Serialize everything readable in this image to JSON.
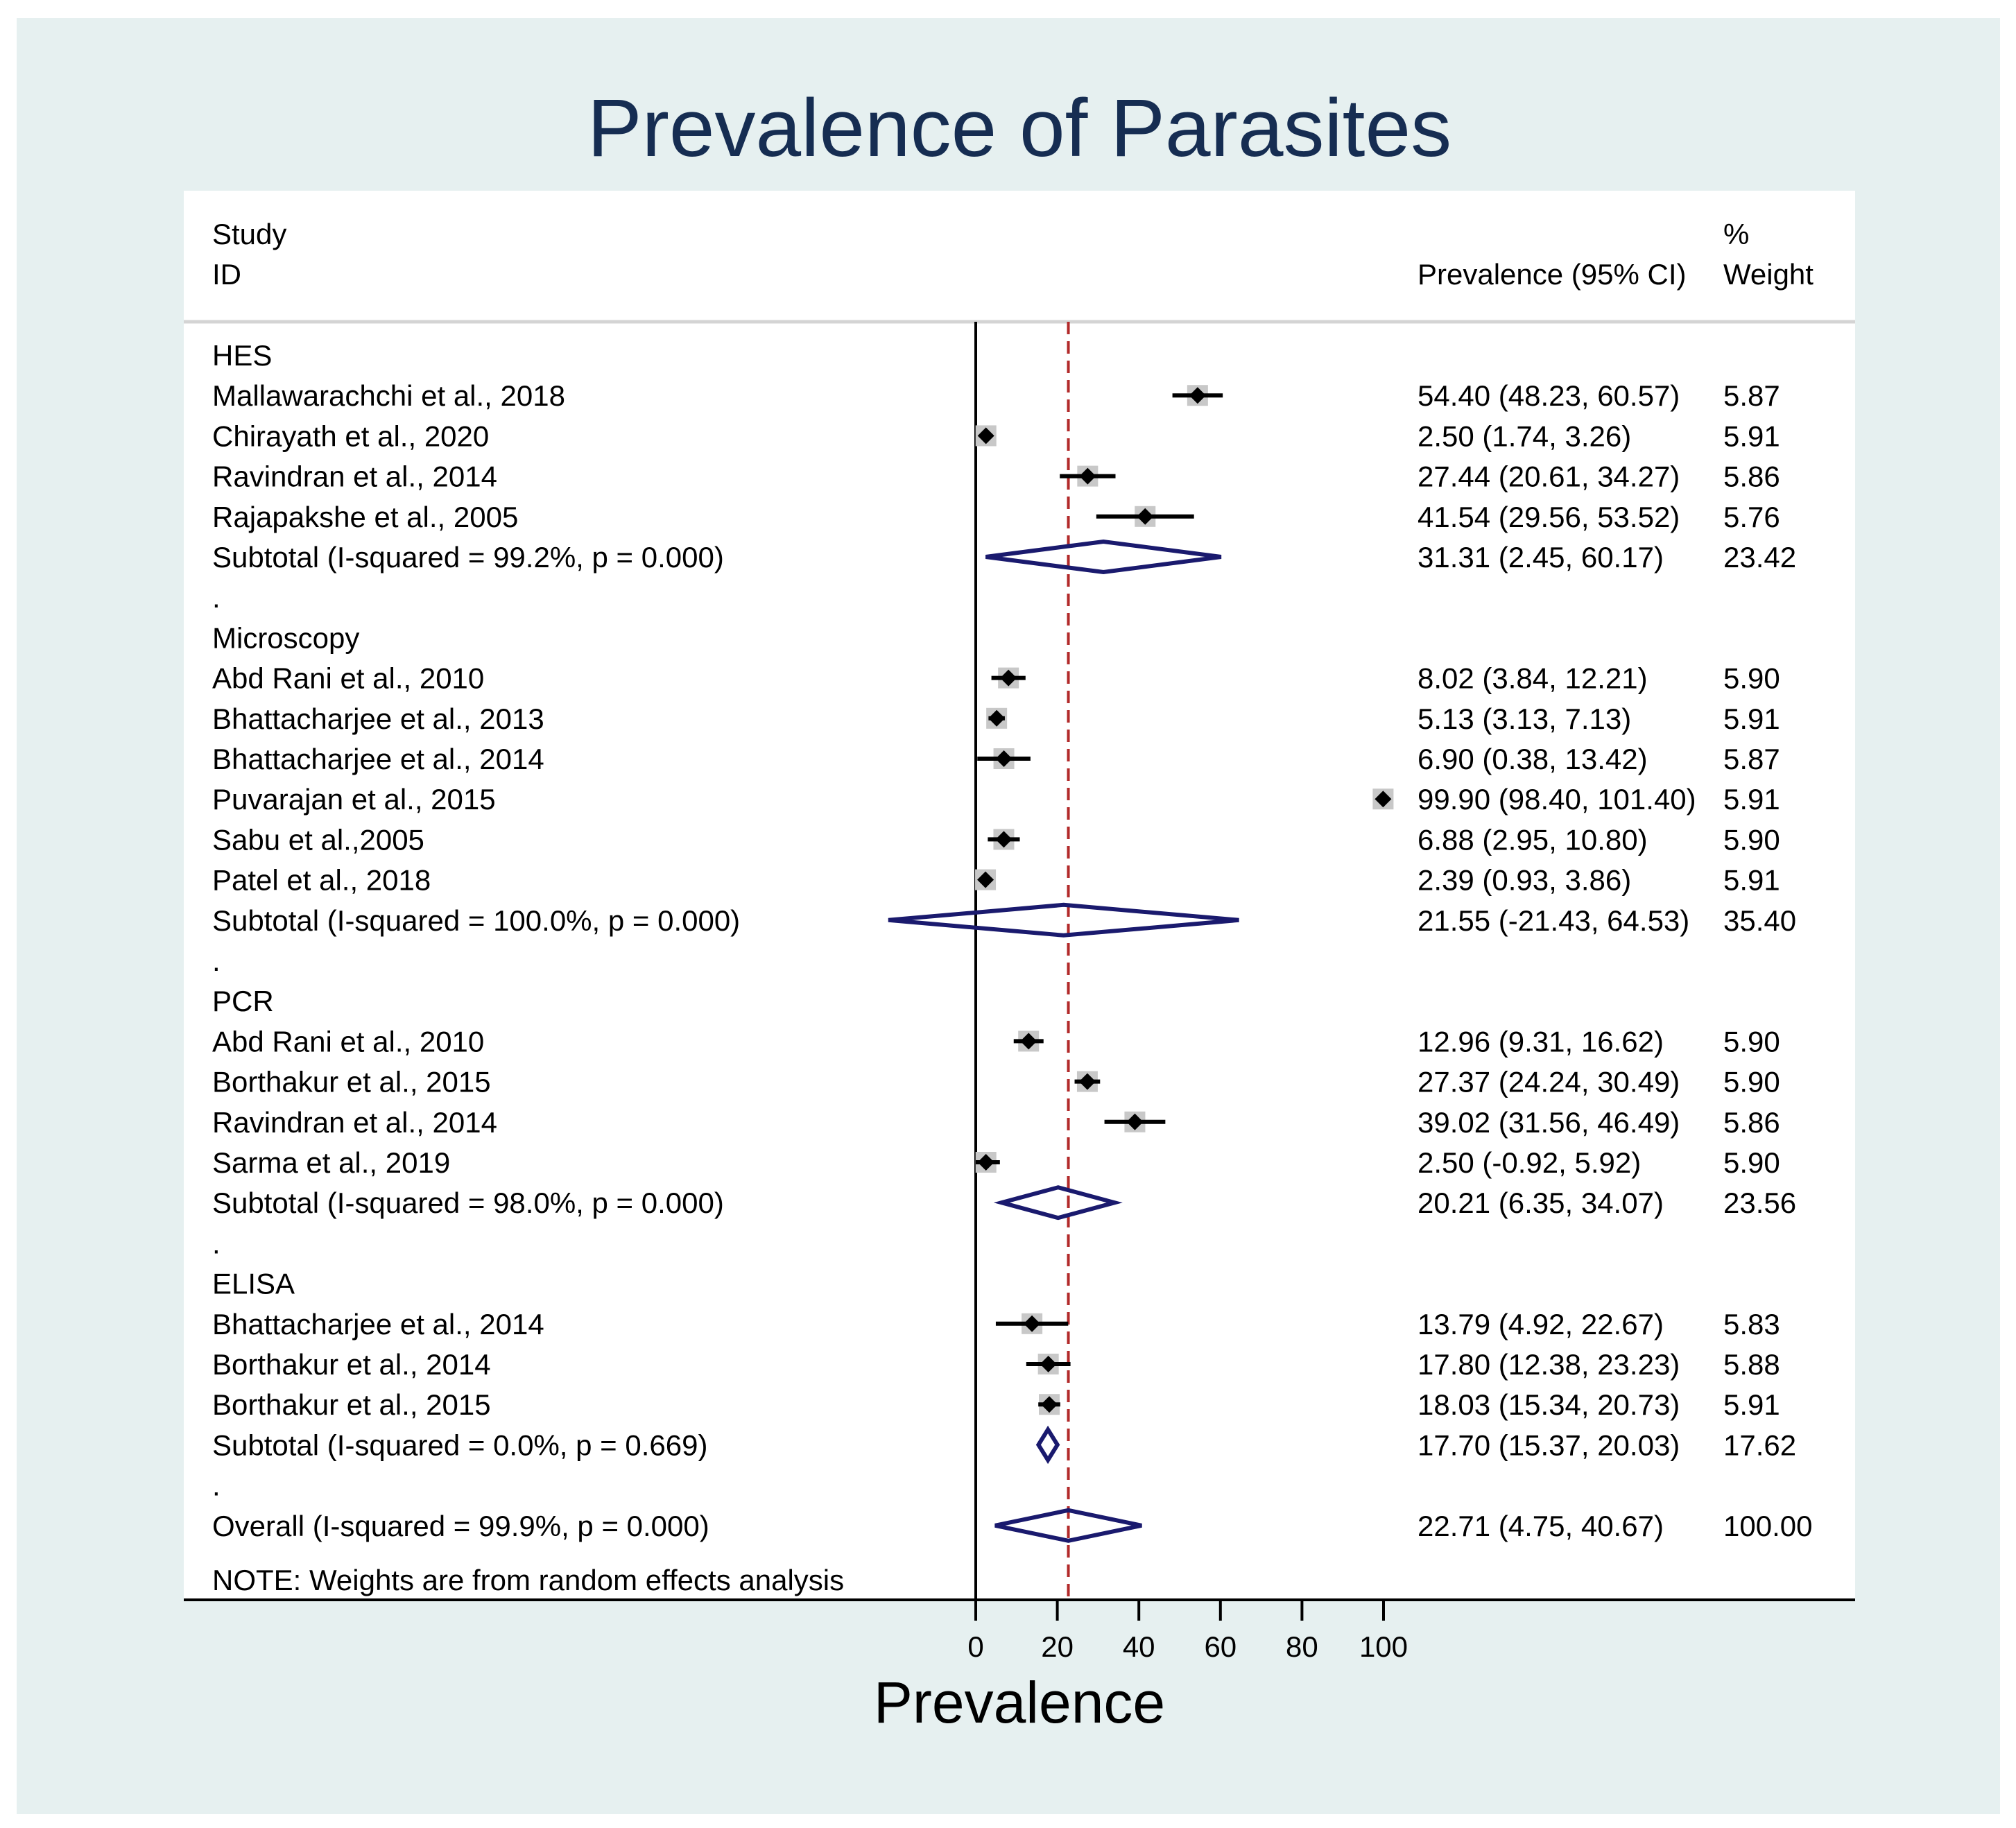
{
  "chart_data": {
    "type": "forest",
    "title": "Prevalence of Parasites",
    "xlabel": "Prevalence",
    "xlim": [
      0,
      100
    ],
    "xticks": [
      0,
      20,
      40,
      60,
      80,
      100
    ],
    "tick_labels": [
      "0",
      "20",
      "40",
      "60",
      "80",
      "100"
    ],
    "reference_line": 22.71,
    "headers": {
      "study_1": "Study",
      "study_2": "ID",
      "estimate": "Prevalence (95% CI)",
      "weight_1": "%",
      "weight_2": "Weight"
    },
    "note": "NOTE: Weights are from random effects analysis",
    "rows": [
      {
        "kind": "group",
        "label": "HES"
      },
      {
        "kind": "study",
        "label": "Mallawarachchi et al., 2018",
        "est": 54.4,
        "lo": 48.23,
        "hi": 60.57,
        "ci_text": "54.40 (48.23, 60.57)",
        "weight": "5.87"
      },
      {
        "kind": "study",
        "label": "Chirayath et al., 2020",
        "est": 2.5,
        "lo": 1.74,
        "hi": 3.26,
        "ci_text": "2.50 (1.74, 3.26)",
        "weight": "5.91"
      },
      {
        "kind": "study",
        "label": "Ravindran et al., 2014",
        "est": 27.44,
        "lo": 20.61,
        "hi": 34.27,
        "ci_text": "27.44 (20.61, 34.27)",
        "weight": "5.86"
      },
      {
        "kind": "study",
        "label": "Rajapakshe et al., 2005",
        "est": 41.54,
        "lo": 29.56,
        "hi": 53.52,
        "ci_text": "41.54 (29.56, 53.52)",
        "weight": "5.76"
      },
      {
        "kind": "subtotal",
        "label": "Subtotal  (I-squared = 99.2%, p = 0.000)",
        "est": 31.31,
        "lo": 2.45,
        "hi": 60.17,
        "ci_text": "31.31 (2.45, 60.17)",
        "weight": "23.42"
      },
      {
        "kind": "dot",
        "label": "."
      },
      {
        "kind": "group",
        "label": "Microscopy"
      },
      {
        "kind": "study",
        "label": "Abd Rani et al., 2010",
        "est": 8.02,
        "lo": 3.84,
        "hi": 12.21,
        "ci_text": "8.02 (3.84, 12.21)",
        "weight": "5.90"
      },
      {
        "kind": "study",
        "label": "Bhattacharjee et al., 2013",
        "est": 5.13,
        "lo": 3.13,
        "hi": 7.13,
        "ci_text": "5.13 (3.13, 7.13)",
        "weight": "5.91"
      },
      {
        "kind": "study",
        "label": "Bhattacharjee et al., 2014",
        "est": 6.9,
        "lo": 0.38,
        "hi": 13.42,
        "ci_text": "6.90 (0.38, 13.42)",
        "weight": "5.87"
      },
      {
        "kind": "study",
        "label": "Puvarajan et al., 2015",
        "est": 99.9,
        "lo": 98.4,
        "hi": 101.4,
        "ci_text": "99.90 (98.40, 101.40)",
        "weight": "5.91"
      },
      {
        "kind": "study",
        "label": "Sabu et al.,2005",
        "est": 6.88,
        "lo": 2.95,
        "hi": 10.8,
        "ci_text": "6.88 (2.95, 10.80)",
        "weight": "5.90"
      },
      {
        "kind": "study",
        "label": "Patel et al., 2018",
        "est": 2.39,
        "lo": 0.93,
        "hi": 3.86,
        "ci_text": "2.39 (0.93, 3.86)",
        "weight": "5.91"
      },
      {
        "kind": "subtotal",
        "label": "Subtotal  (I-squared = 100.0%, p = 0.000)",
        "est": 21.55,
        "lo": -21.43,
        "hi": 64.53,
        "ci_text": "21.55 (-21.43, 64.53)",
        "weight": "35.40"
      },
      {
        "kind": "dot",
        "label": "."
      },
      {
        "kind": "group",
        "label": "PCR"
      },
      {
        "kind": "study",
        "label": "Abd Rani et al., 2010",
        "est": 12.96,
        "lo": 9.31,
        "hi": 16.62,
        "ci_text": "12.96 (9.31, 16.62)",
        "weight": "5.90"
      },
      {
        "kind": "study",
        "label": "Borthakur et al., 2015",
        "est": 27.37,
        "lo": 24.24,
        "hi": 30.49,
        "ci_text": "27.37 (24.24, 30.49)",
        "weight": "5.90"
      },
      {
        "kind": "study",
        "label": "Ravindran et al., 2014",
        "est": 39.02,
        "lo": 31.56,
        "hi": 46.49,
        "ci_text": "39.02 (31.56, 46.49)",
        "weight": "5.86"
      },
      {
        "kind": "study",
        "label": "Sarma et al., 2019",
        "est": 2.5,
        "lo": -0.92,
        "hi": 5.92,
        "ci_text": "2.50 (-0.92, 5.92)",
        "weight": "5.90"
      },
      {
        "kind": "subtotal",
        "label": "Subtotal  (I-squared = 98.0%, p = 0.000)",
        "est": 20.21,
        "lo": 6.35,
        "hi": 34.07,
        "ci_text": "20.21 (6.35, 34.07)",
        "weight": "23.56"
      },
      {
        "kind": "dot",
        "label": "."
      },
      {
        "kind": "group",
        "label": "ELISA"
      },
      {
        "kind": "study",
        "label": "Bhattacharjee et al., 2014",
        "est": 13.79,
        "lo": 4.92,
        "hi": 22.67,
        "ci_text": "13.79 (4.92, 22.67)",
        "weight": "5.83"
      },
      {
        "kind": "study",
        "label": "Borthakur et al., 2014",
        "est": 17.8,
        "lo": 12.38,
        "hi": 23.23,
        "ci_text": "17.80 (12.38, 23.23)",
        "weight": "5.88"
      },
      {
        "kind": "study",
        "label": "Borthakur et al., 2015",
        "est": 18.03,
        "lo": 15.34,
        "hi": 20.73,
        "ci_text": "18.03 (15.34, 20.73)",
        "weight": "5.91"
      },
      {
        "kind": "subtotal",
        "label": "Subtotal  (I-squared = 0.0%, p = 0.669)",
        "est": 17.7,
        "lo": 15.37,
        "hi": 20.03,
        "ci_text": "17.70 (15.37, 20.03)",
        "weight": "17.62"
      },
      {
        "kind": "dot",
        "label": "."
      },
      {
        "kind": "overall",
        "label": "Overall  (I-squared = 99.9%, p = 0.000)",
        "est": 22.71,
        "lo": 4.75,
        "hi": 40.67,
        "ci_text": "22.71 (4.75, 40.67)",
        "weight": "100.00"
      }
    ]
  },
  "colors": {
    "outer_background": "#e6f0f0",
    "plot_background": "#ffffff",
    "title": "#162d52",
    "diamond": "#1a1a6e",
    "ref_line": "#b22a2a",
    "box": "#c8c8c8",
    "text": "#000000",
    "header_rule": "#d4d4d4"
  }
}
